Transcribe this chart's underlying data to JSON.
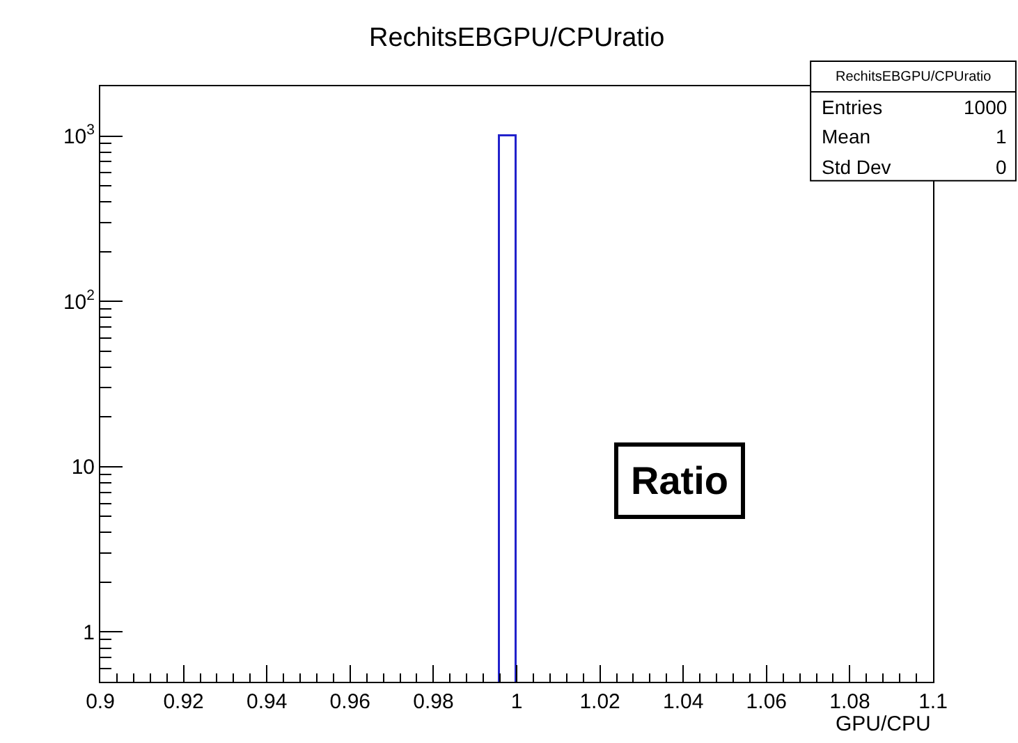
{
  "chart_data": {
    "type": "histogram",
    "title": "RechitsEBGPU/CPUratio",
    "xlabel": "GPU/CPU",
    "bins": [
      0.996,
      1.0
    ],
    "values": [
      1000
    ],
    "color": "#2222cc",
    "xlim": [
      0.9,
      1.1
    ],
    "xticks": [
      0.9,
      0.92,
      0.94,
      0.96,
      0.98,
      1,
      1.02,
      1.04,
      1.06,
      1.08,
      1.1
    ],
    "ylim": [
      0.5,
      2000
    ],
    "log": true,
    "yticks": [
      1,
      10,
      {
        "value": 100,
        "label": "10$^{2}$"
      },
      {
        "value": 1000,
        "label": "10$^{3}$"
      }
    ],
    "annotations": [
      "RechitsEBGPU/CPUratio",
      "Entries",
      "1000",
      "Mean",
      "1",
      "Std Dev",
      "0",
      "Ratio"
    ]
  }
}
